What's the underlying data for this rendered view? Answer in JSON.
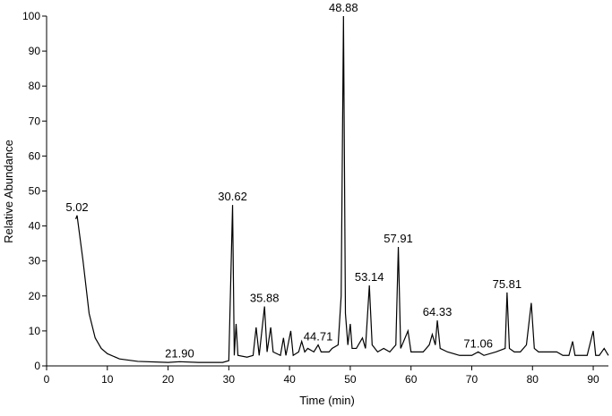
{
  "chart_data": {
    "type": "line",
    "x_label": "Time (min)",
    "y_label": "Relative Abundance",
    "xlim": [
      0,
      92.5
    ],
    "ylim": [
      0,
      100
    ],
    "xticks": [
      0,
      10,
      20,
      30,
      40,
      50,
      60,
      70,
      80,
      90
    ],
    "yticks": [
      0,
      10,
      20,
      30,
      40,
      50,
      60,
      70,
      80,
      90,
      100
    ],
    "color": "#000000",
    "x": [
      4.8,
      5.02,
      6,
      7,
      8,
      9,
      10,
      12,
      15,
      20,
      21.9,
      25,
      29,
      30,
      30.62,
      30.9,
      31.2,
      31.5,
      33,
      34,
      34.5,
      35,
      35.88,
      36.3,
      36.9,
      37.3,
      38.5,
      39,
      39.4,
      40.2,
      40.6,
      41.5,
      42,
      42.5,
      43,
      44,
      44.71,
      45.2,
      46.5,
      47,
      48,
      48.5,
      48.88,
      49.2,
      49.6,
      50,
      50.3,
      51,
      52,
      52.5,
      53.14,
      53.6,
      54.5,
      55.5,
      56.5,
      57.5,
      57.91,
      58.3,
      59.5,
      60,
      61,
      62,
      63,
      63.5,
      64,
      64.33,
      64.8,
      66,
      68,
      70,
      71.06,
      72,
      74,
      75.5,
      75.81,
      76.2,
      77,
      78,
      79,
      79.8,
      80.3,
      81,
      82,
      83,
      84,
      85,
      86,
      86.6,
      87,
      88,
      89,
      90,
      90.4,
      91,
      91.8,
      92.5
    ],
    "values": [
      42,
      43,
      30,
      15,
      8,
      5,
      3.5,
      2,
      1.3,
      1,
      1.2,
      1,
      1,
      1.5,
      46,
      3,
      12,
      3,
      2.5,
      3,
      11,
      3,
      17,
      4,
      11,
      4,
      3,
      8,
      3,
      10,
      3,
      4,
      7,
      4,
      5,
      4,
      6,
      4,
      4,
      5,
      6,
      20,
      100,
      15,
      6,
      12,
      5,
      5,
      8,
      5,
      23,
      6,
      4,
      5,
      4,
      6,
      34,
      5,
      10,
      4,
      4,
      4,
      6,
      9,
      6,
      13,
      5,
      4,
      3,
      3,
      4,
      3,
      4,
      5,
      21,
      5,
      4,
      4,
      6,
      18,
      5,
      4,
      4,
      4,
      4,
      3,
      3,
      7,
      3,
      3,
      3,
      10,
      3,
      3,
      5,
      3
    ],
    "annotations": [
      {
        "text": "5.02",
        "x": 5.02,
        "y": 43
      },
      {
        "text": "21.90",
        "x": 21.9,
        "y": 1.2
      },
      {
        "text": "30.62",
        "x": 30.62,
        "y": 46
      },
      {
        "text": "35.88",
        "x": 35.88,
        "y": 17
      },
      {
        "text": "44.71",
        "x": 44.71,
        "y": 6
      },
      {
        "text": "48.88",
        "x": 48.88,
        "y": 100
      },
      {
        "text": "53.14",
        "x": 53.14,
        "y": 23
      },
      {
        "text": "57.91",
        "x": 57.91,
        "y": 34
      },
      {
        "text": "64.33",
        "x": 64.33,
        "y": 13
      },
      {
        "text": "71.06",
        "x": 71.06,
        "y": 4
      },
      {
        "text": "75.81",
        "x": 75.81,
        "y": 21
      }
    ]
  }
}
